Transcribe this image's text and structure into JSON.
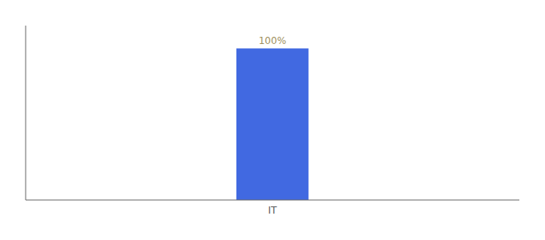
{
  "chart_data": {
    "type": "bar",
    "categories": [
      "IT"
    ],
    "values": [
      100
    ],
    "value_labels": [
      "100%"
    ],
    "color": "#4169e1",
    "ylim": [
      0,
      115
    ],
    "data_labels": true,
    "tick_labels": "x",
    "grid": false
  }
}
